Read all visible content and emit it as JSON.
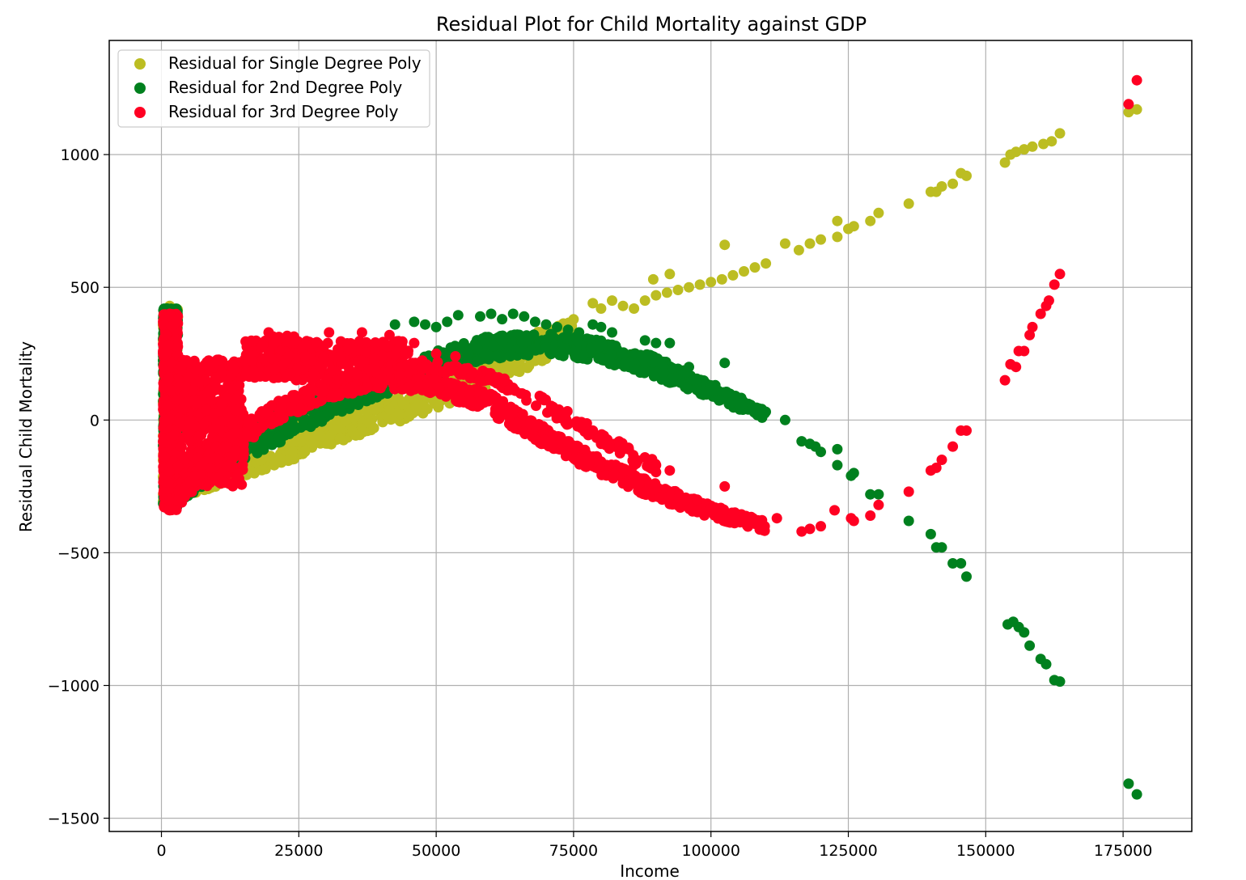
{
  "chart_data": {
    "type": "scatter",
    "title": "Residual Plot for Child Mortality against GDP",
    "xlabel": "Income",
    "ylabel": "Residual Child Mortality",
    "xlim": [
      -9500,
      187500
    ],
    "ylim": [
      -1550,
      1430
    ],
    "xticks": [
      0,
      25000,
      50000,
      75000,
      100000,
      125000,
      150000,
      175000
    ],
    "yticks": [
      -1500,
      -1000,
      -500,
      0,
      500,
      1000
    ],
    "grid": true,
    "legend_position": "top-left",
    "series": [
      {
        "name": "Residual for Single Degree Poly",
        "color": "#bcbd22",
        "clusters": [
          {
            "x_range": [
              300,
              3000
            ],
            "y_range": [
              -310,
              420
            ],
            "count": 650
          },
          {
            "band": [
              [
                3000,
                -300,
                -240
              ],
              [
                10000,
                -250,
                -120
              ],
              [
                20000,
                -180,
                0
              ],
              [
                30000,
                -100,
                70
              ],
              [
                40000,
                -30,
                150
              ],
              [
                50000,
                40,
                200
              ],
              [
                60000,
                130,
                290
              ],
              [
                70000,
                230,
                340
              ],
              [
                75000,
                300,
                380
              ]
            ],
            "count": 1000
          }
        ],
        "points": [
          [
            1500,
            430
          ],
          [
            1800,
            410
          ],
          [
            78500,
            440
          ],
          [
            80000,
            420
          ],
          [
            82000,
            450
          ],
          [
            84000,
            430
          ],
          [
            86000,
            420
          ],
          [
            88000,
            450
          ],
          [
            90000,
            470
          ],
          [
            92000,
            480
          ],
          [
            94000,
            490
          ],
          [
            96000,
            500
          ],
          [
            98000,
            510
          ],
          [
            100000,
            520
          ],
          [
            102000,
            530
          ],
          [
            104000,
            545
          ],
          [
            106000,
            560
          ],
          [
            108000,
            575
          ],
          [
            110000,
            590
          ],
          [
            89500,
            530
          ],
          [
            92500,
            550
          ],
          [
            102500,
            660
          ],
          [
            113500,
            665
          ],
          [
            116000,
            640
          ],
          [
            118000,
            665
          ],
          [
            120000,
            680
          ],
          [
            123000,
            690
          ],
          [
            123000,
            750
          ],
          [
            125000,
            720
          ],
          [
            126000,
            730
          ],
          [
            129000,
            750
          ],
          [
            130500,
            780
          ],
          [
            136000,
            815
          ],
          [
            140000,
            860
          ],
          [
            141000,
            860
          ],
          [
            142000,
            880
          ],
          [
            144000,
            890
          ],
          [
            145500,
            930
          ],
          [
            146500,
            920
          ],
          [
            153500,
            970
          ],
          [
            154500,
            1000
          ],
          [
            155500,
            1010
          ],
          [
            157000,
            1020
          ],
          [
            158500,
            1030
          ],
          [
            160500,
            1040
          ],
          [
            162000,
            1050
          ],
          [
            163500,
            1080
          ],
          [
            176000,
            1160
          ],
          [
            177500,
            1170
          ]
        ]
      },
      {
        "name": "Residual for 2nd Degree Poly",
        "color": "#00801e",
        "clusters": [
          {
            "x_range": [
              300,
              3000
            ],
            "y_range": [
              -330,
              420
            ],
            "count": 650
          },
          {
            "band": [
              [
                3000,
                -310,
                -250
              ],
              [
                10000,
                -220,
                -120
              ],
              [
                20000,
                -100,
                20
              ],
              [
                30000,
                0,
                100
              ],
              [
                40000,
                90,
                170
              ],
              [
                50000,
                170,
                260
              ],
              [
                60000,
                230,
                320
              ],
              [
                70000,
                250,
                330
              ],
              [
                80000,
                220,
                300
              ],
              [
                90000,
                160,
                240
              ],
              [
                100000,
                80,
                140
              ],
              [
                110000,
                0,
                40
              ]
            ],
            "count": 1000
          }
        ],
        "points": [
          [
            42500,
            360
          ],
          [
            46000,
            370
          ],
          [
            48000,
            360
          ],
          [
            50000,
            350
          ],
          [
            52000,
            370
          ],
          [
            54000,
            395
          ],
          [
            58000,
            390
          ],
          [
            60000,
            400
          ],
          [
            62000,
            380
          ],
          [
            64000,
            400
          ],
          [
            66000,
            390
          ],
          [
            68000,
            370
          ],
          [
            70000,
            360
          ],
          [
            72000,
            350
          ],
          [
            74000,
            340
          ],
          [
            76000,
            330
          ],
          [
            78500,
            360
          ],
          [
            80000,
            350
          ],
          [
            82000,
            330
          ],
          [
            88000,
            300
          ],
          [
            90000,
            290
          ],
          [
            92500,
            290
          ],
          [
            96000,
            200
          ],
          [
            102500,
            215
          ],
          [
            113500,
            0
          ],
          [
            116500,
            -80
          ],
          [
            118000,
            -90
          ],
          [
            119000,
            -100
          ],
          [
            120000,
            -120
          ],
          [
            123000,
            -110
          ],
          [
            123000,
            -170
          ],
          [
            125500,
            -210
          ],
          [
            126000,
            -200
          ],
          [
            129000,
            -280
          ],
          [
            130500,
            -280
          ],
          [
            136000,
            -380
          ],
          [
            140000,
            -430
          ],
          [
            141000,
            -480
          ],
          [
            142000,
            -480
          ],
          [
            144000,
            -540
          ],
          [
            145500,
            -540
          ],
          [
            146500,
            -590
          ],
          [
            154000,
            -770
          ],
          [
            155000,
            -760
          ],
          [
            156000,
            -780
          ],
          [
            157000,
            -800
          ],
          [
            158000,
            -850
          ],
          [
            160000,
            -900
          ],
          [
            161000,
            -920
          ],
          [
            162500,
            -980
          ],
          [
            163500,
            -985
          ],
          [
            176000,
            -1370
          ],
          [
            177500,
            -1410
          ]
        ]
      },
      {
        "name": "Residual for 3rd Degree Poly",
        "color": "#ff0022",
        "clusters": [
          {
            "x_range": [
              300,
              3000
            ],
            "y_range": [
              -340,
              400
            ],
            "count": 700
          },
          {
            "x_range": [
              3000,
              15000
            ],
            "y_range": [
              -250,
              230
            ],
            "count": 450
          },
          {
            "band": [
              [
                3000,
                -330,
                -260
              ],
              [
                10000,
                -170,
                -90
              ],
              [
                20000,
                -20,
                60
              ],
              [
                30000,
                80,
                150
              ],
              [
                40000,
                120,
                190
              ],
              [
                50000,
                100,
                160
              ],
              [
                60000,
                20,
                100
              ],
              [
                70000,
                -100,
                -30
              ],
              [
                80000,
                -210,
                -140
              ],
              [
                90000,
                -300,
                -240
              ],
              [
                100000,
                -370,
                -320
              ],
              [
                110000,
                -420,
                -380
              ]
            ],
            "count": 900
          },
          {
            "band": [
              [
                20000,
                280,
                340
              ],
              [
                30000,
                230,
                280
              ],
              [
                40000,
                200,
                240
              ],
              [
                50000,
                180,
                220
              ],
              [
                60000,
                140,
                180
              ],
              [
                70000,
                30,
                80
              ],
              [
                80000,
                -100,
                -40
              ],
              [
                90000,
                -200,
                -140
              ]
            ],
            "count": 250
          },
          {
            "x_range": [
              15000,
              45000
            ],
            "y_range": [
              150,
              300
            ],
            "count": 350
          }
        ],
        "points": [
          [
            1500,
            400
          ],
          [
            19500,
            330
          ],
          [
            30500,
            330
          ],
          [
            36500,
            330
          ],
          [
            41500,
            320
          ],
          [
            46000,
            290
          ],
          [
            50000,
            250
          ],
          [
            53500,
            240
          ],
          [
            78500,
            -40
          ],
          [
            80000,
            -90
          ],
          [
            84000,
            -110
          ],
          [
            86000,
            -170
          ],
          [
            90000,
            -170
          ],
          [
            92500,
            -190
          ],
          [
            97500,
            -300
          ],
          [
            102500,
            -250
          ],
          [
            112000,
            -370
          ],
          [
            116500,
            -420
          ],
          [
            118000,
            -410
          ],
          [
            120000,
            -400
          ],
          [
            122500,
            -340
          ],
          [
            125500,
            -370
          ],
          [
            126000,
            -380
          ],
          [
            129000,
            -360
          ],
          [
            130500,
            -320
          ],
          [
            136000,
            -270
          ],
          [
            140000,
            -190
          ],
          [
            141000,
            -180
          ],
          [
            142000,
            -150
          ],
          [
            144000,
            -100
          ],
          [
            145500,
            -40
          ],
          [
            146500,
            -40
          ],
          [
            153500,
            150
          ],
          [
            154500,
            210
          ],
          [
            155500,
            200
          ],
          [
            156000,
            260
          ],
          [
            157000,
            260
          ],
          [
            158000,
            320
          ],
          [
            158500,
            350
          ],
          [
            160000,
            400
          ],
          [
            161000,
            430
          ],
          [
            161500,
            450
          ],
          [
            162500,
            510
          ],
          [
            163500,
            550
          ],
          [
            176000,
            1190
          ],
          [
            177500,
            1280
          ]
        ]
      }
    ]
  }
}
